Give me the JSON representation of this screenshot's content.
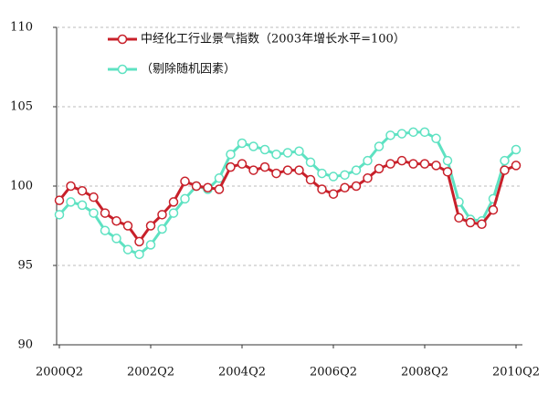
{
  "chart_data": {
    "type": "line",
    "categories": [
      "2000Q2",
      null,
      null,
      null,
      null,
      null,
      null,
      null,
      "2002Q2",
      null,
      null,
      null,
      null,
      null,
      null,
      null,
      "2004Q2",
      null,
      null,
      null,
      null,
      null,
      null,
      null,
      "2006Q2",
      null,
      null,
      null,
      null,
      null,
      null,
      null,
      "2008Q2",
      null,
      null,
      null,
      null,
      null,
      null,
      null,
      "2010Q2"
    ],
    "series": [
      {
        "name": "中经化工行业景气指数（2003年增长水平=100）",
        "color": "#c8202a",
        "values": [
          99.1,
          100.0,
          99.7,
          99.3,
          98.3,
          97.8,
          97.5,
          96.5,
          97.5,
          98.2,
          99.0,
          100.3,
          100.0,
          99.9,
          99.8,
          101.2,
          101.4,
          101.0,
          101.2,
          100.8,
          101.0,
          101.0,
          100.4,
          99.8,
          99.5,
          99.9,
          100.0,
          100.5,
          101.1,
          101.4,
          101.6,
          101.4,
          101.4,
          101.3,
          100.9,
          98.0,
          97.7,
          97.6,
          98.5,
          101.0,
          101.3
        ]
      },
      {
        "name": "（剔除随机因素）",
        "color": "#5ee2c2",
        "values": [
          98.2,
          99.0,
          98.8,
          98.3,
          97.2,
          96.7,
          96.0,
          95.7,
          96.3,
          97.3,
          98.3,
          99.2,
          100.0,
          99.8,
          100.5,
          102.0,
          102.7,
          102.5,
          102.3,
          102.0,
          102.1,
          102.2,
          101.5,
          100.8,
          100.6,
          100.7,
          101.0,
          101.6,
          102.5,
          103.2,
          103.3,
          103.4,
          103.4,
          103.0,
          101.6,
          99.0,
          97.9,
          97.8,
          99.2,
          101.6,
          102.3
        ]
      }
    ],
    "ylim": [
      90,
      110
    ],
    "yticks": [
      90,
      95,
      100,
      105,
      110
    ],
    "grid": true,
    "legend": "top-left"
  }
}
